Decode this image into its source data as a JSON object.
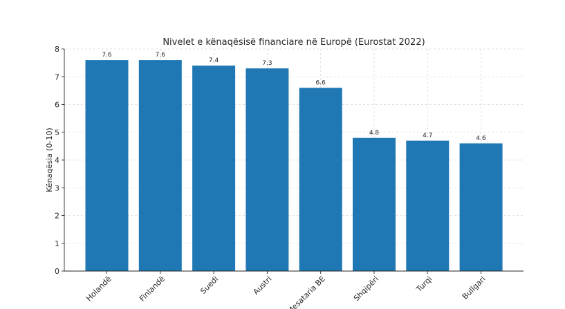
{
  "chart_data": {
    "type": "bar",
    "title": "Nivelet e kënaqësisë financiare në Europë (Eurostat 2022)",
    "xlabel": "",
    "ylabel": "Kënaqësia (0-10)",
    "categories": [
      "Holandë",
      "Finlandë",
      "Suedi",
      "Austri",
      "Mesataria BE",
      "Shqipëri",
      "Turqi",
      "Bullgari"
    ],
    "values": [
      7.6,
      7.6,
      7.4,
      7.3,
      6.6,
      4.8,
      4.7,
      4.6
    ],
    "value_labels": [
      "7.6",
      "7.6",
      "7.4",
      "7.3",
      "6.6",
      "4.8",
      "4.7",
      "4.6"
    ],
    "ylim": [
      0,
      8
    ],
    "yticks": [
      "0",
      "1",
      "2",
      "3",
      "4",
      "5",
      "6",
      "7",
      "8"
    ],
    "grid": true,
    "bar_color": "#1f77b4"
  }
}
